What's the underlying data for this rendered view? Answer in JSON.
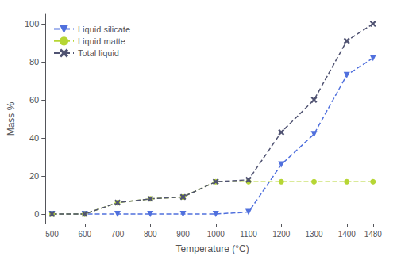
{
  "chart_data": {
    "type": "line",
    "x": [
      500,
      600,
      700,
      800,
      900,
      1000,
      1100,
      1200,
      1300,
      1400,
      1480
    ],
    "series": [
      {
        "name": "Liquid silicate",
        "values": [
          0,
          0,
          0,
          0,
          0,
          0,
          1,
          26,
          42,
          73,
          82
        ],
        "marker": "triangle_down",
        "line_style": "dashed"
      },
      {
        "name": "Liquid matte",
        "values": [
          0,
          0,
          6,
          8,
          9,
          17,
          17,
          17,
          17,
          17,
          17
        ],
        "marker": "circle",
        "line_style": "dashed"
      },
      {
        "name": "Total liquid",
        "values": [
          0,
          0,
          6,
          8,
          9,
          17,
          18,
          43,
          60,
          91,
          100
        ],
        "marker": "x",
        "line_style": "dashed"
      }
    ],
    "xlabel": "Temperature (°C)",
    "ylabel": "Mass %",
    "xlim": [
      480,
      1500
    ],
    "ylim": [
      -5,
      105
    ],
    "xticks": [
      500,
      600,
      700,
      800,
      900,
      1000,
      1100,
      1200,
      1300,
      1400,
      1480
    ],
    "yticks": [
      0,
      20,
      40,
      60,
      80,
      100
    ],
    "legend": "upper left",
    "grid": false
  }
}
